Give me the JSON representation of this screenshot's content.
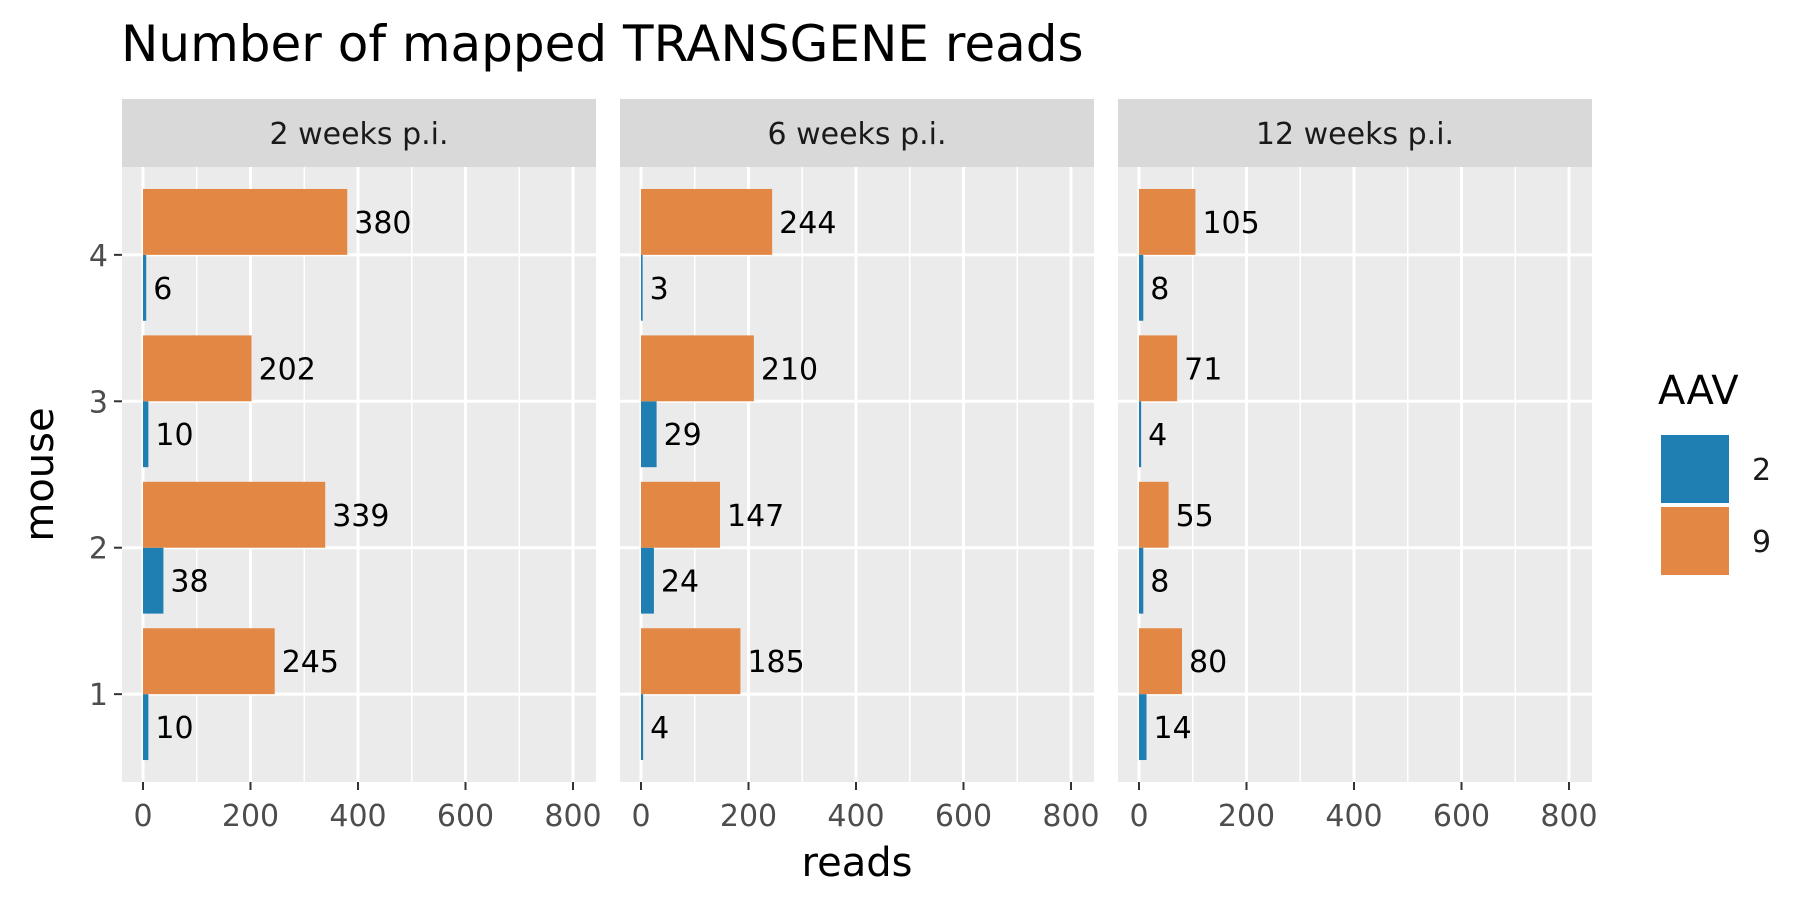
{
  "chart_data": {
    "type": "bar",
    "orientation": "horizontal",
    "title": "Number of mapped TRANSGENE reads",
    "xlabel": "reads",
    "ylabel": "mouse",
    "xlim": [
      0,
      800
    ],
    "x_ticks": [
      0,
      200,
      400,
      600,
      800
    ],
    "categories": [
      "1",
      "2",
      "3",
      "4"
    ],
    "grid": true,
    "legend": {
      "title": "AAV",
      "position": "right",
      "entries": [
        {
          "name": "2",
          "color": "#1f7fb3"
        },
        {
          "name": "9",
          "color": "#e28744"
        }
      ]
    },
    "panels": [
      {
        "label": "2 weeks p.i.",
        "series": [
          {
            "name": "2",
            "values": [
              10,
              38,
              10,
              6
            ]
          },
          {
            "name": "9",
            "values": [
              245,
              339,
              202,
              380
            ]
          }
        ]
      },
      {
        "label": "6 weeks p.i.",
        "series": [
          {
            "name": "2",
            "values": [
              4,
              24,
              29,
              3
            ]
          },
          {
            "name": "9",
            "values": [
              185,
              147,
              210,
              244
            ]
          }
        ]
      },
      {
        "label": "12 weeks p.i.",
        "series": [
          {
            "name": "2",
            "values": [
              14,
              8,
              4,
              8
            ]
          },
          {
            "name": "9",
            "values": [
              80,
              55,
              71,
              105
            ]
          }
        ]
      }
    ]
  }
}
